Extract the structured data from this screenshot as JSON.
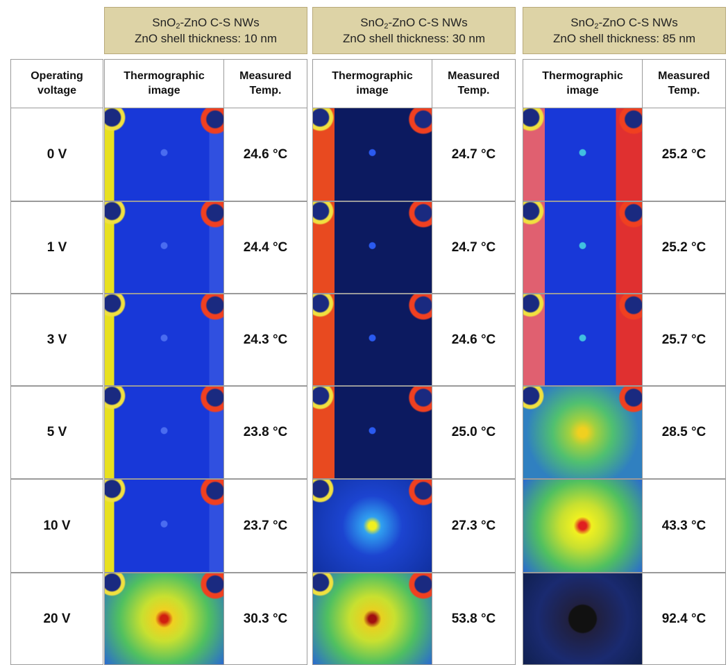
{
  "groups": [
    {
      "formula": [
        "SnO",
        "2",
        "-ZnO C-S NWs"
      ],
      "thickness": "ZnO shell thickness: 10 nm"
    },
    {
      "formula": [
        "SnO",
        "2",
        "-ZnO C-S NWs"
      ],
      "thickness": "ZnO shell thickness: 30 nm"
    },
    {
      "formula": [
        "SnO",
        "2",
        "-ZnO C-S NWs"
      ],
      "thickness": "ZnO shell thickness: 85 nm"
    }
  ],
  "table": {
    "headers": {
      "voltage": "Operating voltage",
      "image": "Thermographic image",
      "temp": "Measured Temp."
    },
    "rows": [
      {
        "voltage": "0 V",
        "temps": [
          "24.6 °C",
          "24.7 °C",
          "25.2 °C"
        ]
      },
      {
        "voltage": "1 V",
        "temps": [
          "24.4 °C",
          "24.7 °C",
          "25.2 °C"
        ]
      },
      {
        "voltage": "3 V",
        "temps": [
          "24.3 °C",
          "24.6 °C",
          "25.7 °C"
        ]
      },
      {
        "voltage": "5 V",
        "temps": [
          "23.8 °C",
          "25.0 °C",
          "28.5 °C"
        ]
      },
      {
        "voltage": "10 V",
        "temps": [
          "23.7 °C",
          "27.3 °C",
          "43.3 °C"
        ]
      },
      {
        "voltage": "20 V",
        "temps": [
          "30.3 °C",
          "53.8 °C",
          "92.4 °C"
        ]
      }
    ]
  }
}
